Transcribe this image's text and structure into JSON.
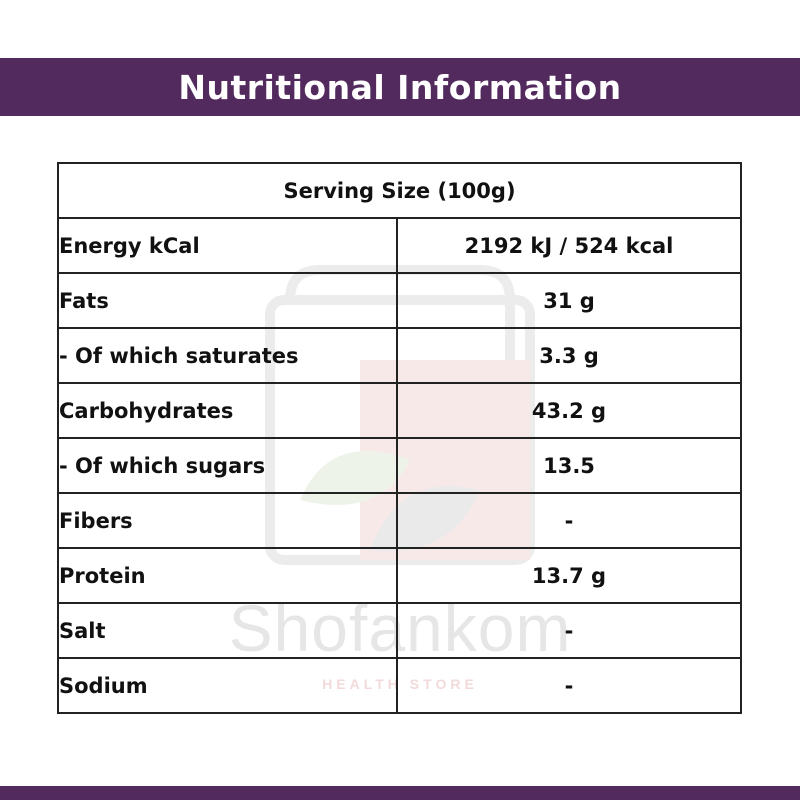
{
  "header": {
    "title": "Nutritional Information"
  },
  "table": {
    "serving_size": "Serving Size (100g)",
    "rows": [
      {
        "label": "Energy kCal",
        "value": "2192 kJ / 524 kcal"
      },
      {
        "label": "Fats",
        "value": "31 g"
      },
      {
        "label": "- Of which saturates",
        "value": "3.3 g"
      },
      {
        "label": "Carbohydrates",
        "value": "43.2 g"
      },
      {
        "label": "- Of which sugars",
        "value": "13.5"
      },
      {
        "label": "Fibers",
        "value": "-"
      },
      {
        "label": "Protein",
        "value": "13.7 g"
      },
      {
        "label": "Salt",
        "value": "-"
      },
      {
        "label": "Sodium",
        "value": "-"
      }
    ]
  },
  "watermark": {
    "brand": "Shofankom",
    "subtitle": "HEALTH STORE"
  },
  "colors": {
    "band": "#532a5e",
    "serving_text": "#d40000"
  }
}
